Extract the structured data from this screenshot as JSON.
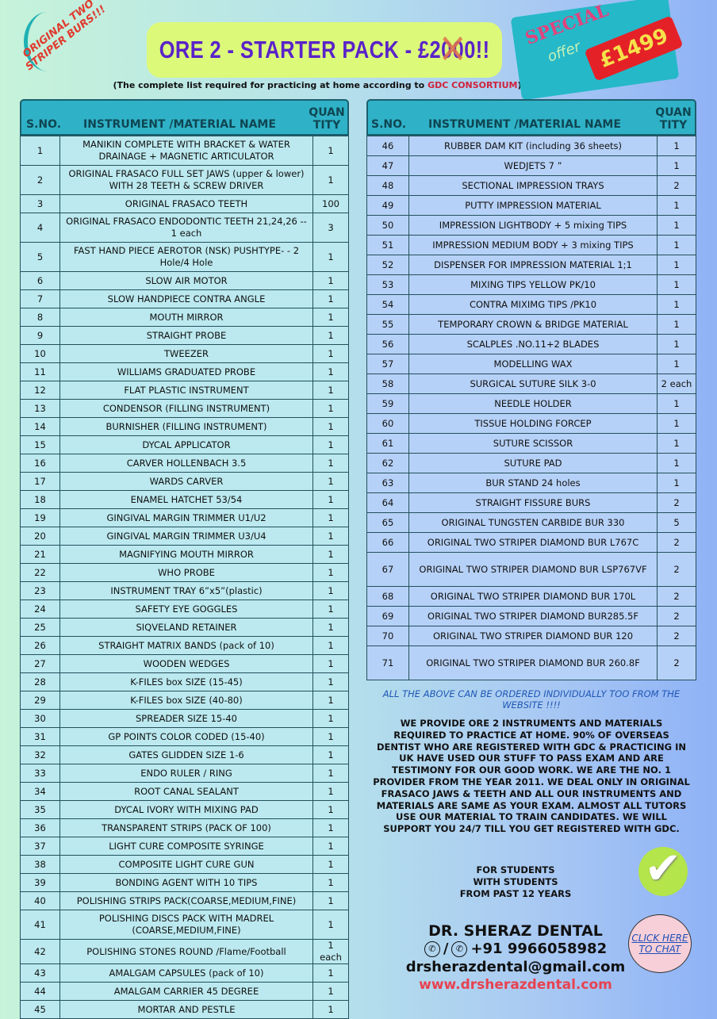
{
  "header": {
    "title_prefix": "ORE 2 - STARTER PACK - £2",
    "title_struck": "00",
    "title_suffix": "0!!",
    "subtitle": "(The complete list required for practicing at home according to ",
    "subtitle_highlight": "GDC CONSORTIUM",
    "subtitle_end": ")",
    "sticker_line1": "ORIGINAL TWO",
    "sticker_line2": "STRIPER BURS!!!",
    "special": "SPECIAL",
    "offer": "offer",
    "price": "£1499"
  },
  "columns": {
    "sno": "S.NO.",
    "name": "INSTRUMENT /MATERIAL NAME",
    "qty_line1": "QUAN",
    "qty_line2": "TITY"
  },
  "left_table": [
    [
      "1",
      "MANIKIN COMPLETE WITH BRACKET & WATER DRAINAGE + MAGNETIC ARTICULATOR",
      "1"
    ],
    [
      "2",
      "ORIGINAL FRASACO FULL SET JAWS (upper & lower) WITH 28 TEETH & SCREW DRIVER",
      "1"
    ],
    [
      "3",
      "ORIGINAL FRASACO TEETH",
      "100"
    ],
    [
      "4",
      "ORIGINAL FRASACO ENDODONTIC TEETH 21,24,26 -- 1 each",
      "3"
    ],
    [
      "5",
      "FAST HAND PIECE AEROTOR (NSK) PUSHTYPE- - 2 Hole/4 Hole",
      "1"
    ],
    [
      "6",
      "SLOW AIR MOTOR",
      "1"
    ],
    [
      "7",
      "SLOW HANDPIECE CONTRA ANGLE",
      "1"
    ],
    [
      "8",
      "MOUTH MIRROR",
      "1"
    ],
    [
      "9",
      "STRAIGHT PROBE",
      "1"
    ],
    [
      "10",
      "TWEEZER",
      "1"
    ],
    [
      "11",
      "WILLIAMS GRADUATED PROBE",
      "1"
    ],
    [
      "12",
      "FLAT PLASTIC INSTRUMENT",
      "1"
    ],
    [
      "13",
      "CONDENSOR (FILLING INSTRUMENT)",
      "1"
    ],
    [
      "14",
      "BURNISHER (FILLING INSTRUMENT)",
      "1"
    ],
    [
      "15",
      "DYCAL APPLICATOR",
      "1"
    ],
    [
      "16",
      "CARVER HOLLENBACH 3.5",
      "1"
    ],
    [
      "17",
      "WARDS CARVER",
      "1"
    ],
    [
      "18",
      "ENAMEL HATCHET 53/54",
      "1"
    ],
    [
      "19",
      "GINGIVAL MARGIN TRIMMER U1/U2",
      "1"
    ],
    [
      "20",
      "GINGIVAL MARGIN TRIMMER U3/U4",
      "1"
    ],
    [
      "21",
      "MAGNIFYING MOUTH MIRROR",
      "1"
    ],
    [
      "22",
      "WHO PROBE",
      "1"
    ],
    [
      "23",
      "INSTRUMENT TRAY 6”x5”(plastic)",
      "1"
    ],
    [
      "24",
      "SAFETY EYE GOGGLES",
      "1"
    ],
    [
      "25",
      "SIQVELAND RETAINER",
      "1"
    ],
    [
      "26",
      "STRAIGHT MATRIX BANDS (pack of 10)",
      "1"
    ],
    [
      "27",
      "WOODEN WEDGES",
      "1"
    ],
    [
      "28",
      "K-FILES box SIZE (15-45)",
      "1"
    ],
    [
      "29",
      "K-FILES box SIZE (40-80)",
      "1"
    ],
    [
      "30",
      "SPREADER SIZE 15-40",
      "1"
    ],
    [
      "31",
      "GP POINTS COLOR CODED (15-40)",
      "1"
    ],
    [
      "32",
      "GATES GLIDDEN SIZE 1-6",
      "1"
    ],
    [
      "33",
      "ENDO RULER / RING",
      "1"
    ],
    [
      "34",
      "ROOT CANAL SEALANT",
      "1"
    ],
    [
      "35",
      "DYCAL IVORY WITH MIXING PAD",
      "1"
    ],
    [
      "36",
      "TRANSPARENT STRIPS (PACK OF 100)",
      "1"
    ],
    [
      "37",
      "LIGHT CURE COMPOSITE SYRINGE",
      "1"
    ],
    [
      "38",
      "COMPOSITE LIGHT CURE GUN",
      "1"
    ],
    [
      "39",
      "BONDING AGENT WITH 10 TIPS",
      "1"
    ],
    [
      "40",
      "POLISHING STRIPS PACK(COARSE,MEDIUM,FINE)",
      "1"
    ],
    [
      "41",
      "POLISHING DISCS PACK WITH MADREL (COARSE,MEDIUM,FINE)",
      "1"
    ],
    [
      "42",
      "POLISHING STONES ROUND /Flame/Football",
      "1 each"
    ],
    [
      "43",
      "AMALGAM CAPSULES (pack of 10)",
      "1"
    ],
    [
      "44",
      "AMALGAM CARRIER 45 DEGREE",
      "1"
    ],
    [
      "45",
      "MORTAR AND PESTLE",
      "1"
    ]
  ],
  "right_table": [
    [
      "46",
      "RUBBER DAM KIT (including 36 sheets)",
      "1"
    ],
    [
      "47",
      "WEDJETS 7 ”",
      "1"
    ],
    [
      "48",
      "SECTIONAL IMPRESSION TRAYS",
      "2"
    ],
    [
      "49",
      "PUTTY IMPRESSION MATERIAL",
      "1"
    ],
    [
      "50",
      "IMPRESSION LIGHTBODY + 5 mixing TIPS",
      "1"
    ],
    [
      "51",
      "IMPRESSION MEDIUM BODY + 3 mixing TIPS",
      "1"
    ],
    [
      "52",
      "DISPENSER FOR IMPRESSION MATERIAL 1;1",
      "1"
    ],
    [
      "53",
      "MIXING TIPS YELLOW PK/10",
      "1"
    ],
    [
      "54",
      "CONTRA MIXIMG TIPS /PK10",
      "1"
    ],
    [
      "55",
      "TEMPORARY CROWN & BRIDGE MATERIAL",
      "1"
    ],
    [
      "56",
      "SCALPLES .NO.11+2 BLADES",
      "1"
    ],
    [
      "57",
      "MODELLING WAX",
      "1"
    ],
    [
      "58",
      "SURGICAL SUTURE SILK 3-0",
      "2 each"
    ],
    [
      "59",
      "NEEDLE HOLDER",
      "1"
    ],
    [
      "60",
      "TISSUE HOLDING FORCEP",
      "1"
    ],
    [
      "61",
      "SUTURE SCISSOR",
      "1"
    ],
    [
      "62",
      "SUTURE PAD",
      "1"
    ],
    [
      "63",
      "BUR STAND 24 holes",
      "1"
    ],
    [
      "64",
      "STRAIGHT FISSURE BURS",
      "2"
    ],
    [
      "65",
      "ORIGINAL TUNGSTEN CARBIDE BUR 330",
      "5"
    ],
    [
      "66",
      "ORIGINAL TWO STRIPER DIAMOND BUR L767C",
      "2"
    ],
    [
      "67",
      "ORIGINAL TWO STRIPER DIAMOND BUR LSP767VF",
      "2"
    ],
    [
      "68",
      "ORIGINAL TWO STRIPER DIAMOND BUR 170L",
      "2"
    ],
    [
      "69",
      "ORIGINAL TWO STRIPER DIAMOND BUR285.5F",
      "2"
    ],
    [
      "70",
      "ORIGINAL TWO STRIPER DIAMOND BUR 120",
      "2"
    ],
    [
      "71",
      "ORIGINAL TWO STRIPER DIAMOND BUR 260.8F",
      "2"
    ]
  ],
  "footer": {
    "notice": "ALL THE ABOVE CAN BE ORDERED INDIVIDUALLY TOO FROM THE WEBSITE !!!!",
    "about": "WE PROVIDE ORE 2 INSTRUMENTS AND MATERIALS REQUIRED TO PRACTICE AT HOME. 90% OF OVERSEAS DENTIST WHO ARE REGISTERED WITH GDC & PRACTICING IN UK HAVE USED OUR STUFF TO PASS EXAM AND ARE TESTIMONY FOR OUR GOOD WORK. WE ARE THE NO. 1 PROVIDER FROM THE YEAR 2011. WE DEAL ONLY IN ORIGINAL FRASACO JAWS & TEETH AND ALL OUR INSTRUMENTS AND MATERIALS ARE SAME AS YOUR EXAM. ALMOST ALL TUTORS USE OUR MATERIAL TO TRAIN CANDIDATES. WE WILL SUPPORT YOU 24/7 TILL YOU GET REGISTERED WITH GDC.",
    "tag1": "FOR STUDENTS",
    "tag2": "WITH STUDENTS",
    "tag3": "FROM PAST 12 YEARS",
    "company": "DR. SHERAZ DENTAL",
    "phone_sep": "/",
    "phone": "+91 9966058982",
    "email": "drsherazdental@gmail.com",
    "website": "www.drsherazdental.com",
    "chat": "CLICK HERE TO CHAT"
  },
  "colors": {
    "title": "#5a22c9",
    "title_bg": "#dcf97a",
    "header": "#2fb2c7",
    "price_bg": "#e52128",
    "link": "#e8424f"
  }
}
